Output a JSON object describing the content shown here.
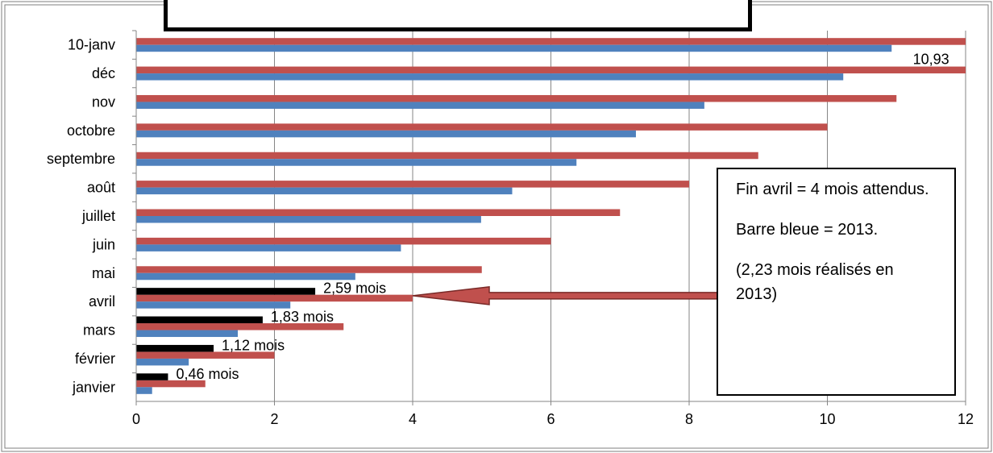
{
  "colors": {
    "red_series": "#c0504d",
    "blue_series": "#4f81bd",
    "black_series": "#000000",
    "arrow": "#c0504d",
    "grid": "#868686"
  },
  "note": {
    "line1": "Fin avril = 4 mois attendus.",
    "line2": "Barre bleue = 2013.",
    "line3": "(2,23 mois réalisés en 2013)"
  },
  "chart_data": {
    "type": "bar",
    "orientation": "horizontal",
    "categories": [
      "janvier",
      "février",
      "mars",
      "avril",
      "mai",
      "juin",
      "juillet",
      "août",
      "septembre",
      "octobre",
      "nov",
      "déc",
      "10-janv"
    ],
    "series": [
      {
        "color": "#c0504d",
        "values": [
          1,
          2,
          3,
          4,
          5,
          6,
          7,
          8,
          9,
          10,
          11,
          12,
          12
        ]
      },
      {
        "color": "#4f81bd",
        "values": [
          0.23,
          0.76,
          1.47,
          2.23,
          3.17,
          3.83,
          4.99,
          5.44,
          6.37,
          7.23,
          8.22,
          10.23,
          10.93
        ]
      },
      {
        "color": "#000000",
        "values": [
          0.46,
          1.12,
          1.83,
          2.59,
          null,
          null,
          null,
          null,
          null,
          null,
          null,
          null,
          null
        ]
      }
    ],
    "data_labels": [
      {
        "category": "janvier",
        "text": "0,46 mois"
      },
      {
        "category": "février",
        "text": "1,12 mois"
      },
      {
        "category": "mars",
        "text": "1,83 mois"
      },
      {
        "category": "avril",
        "text": "2,59 mois"
      },
      {
        "category": "10-janv",
        "text": "10,93"
      }
    ],
    "xlim": [
      0,
      12
    ],
    "xticks": [
      0,
      2,
      4,
      6,
      8,
      10,
      12
    ],
    "grid": true,
    "legend": "none",
    "arrow": {
      "category": "avril",
      "from_x": 8.5,
      "to_x": 4
    }
  }
}
